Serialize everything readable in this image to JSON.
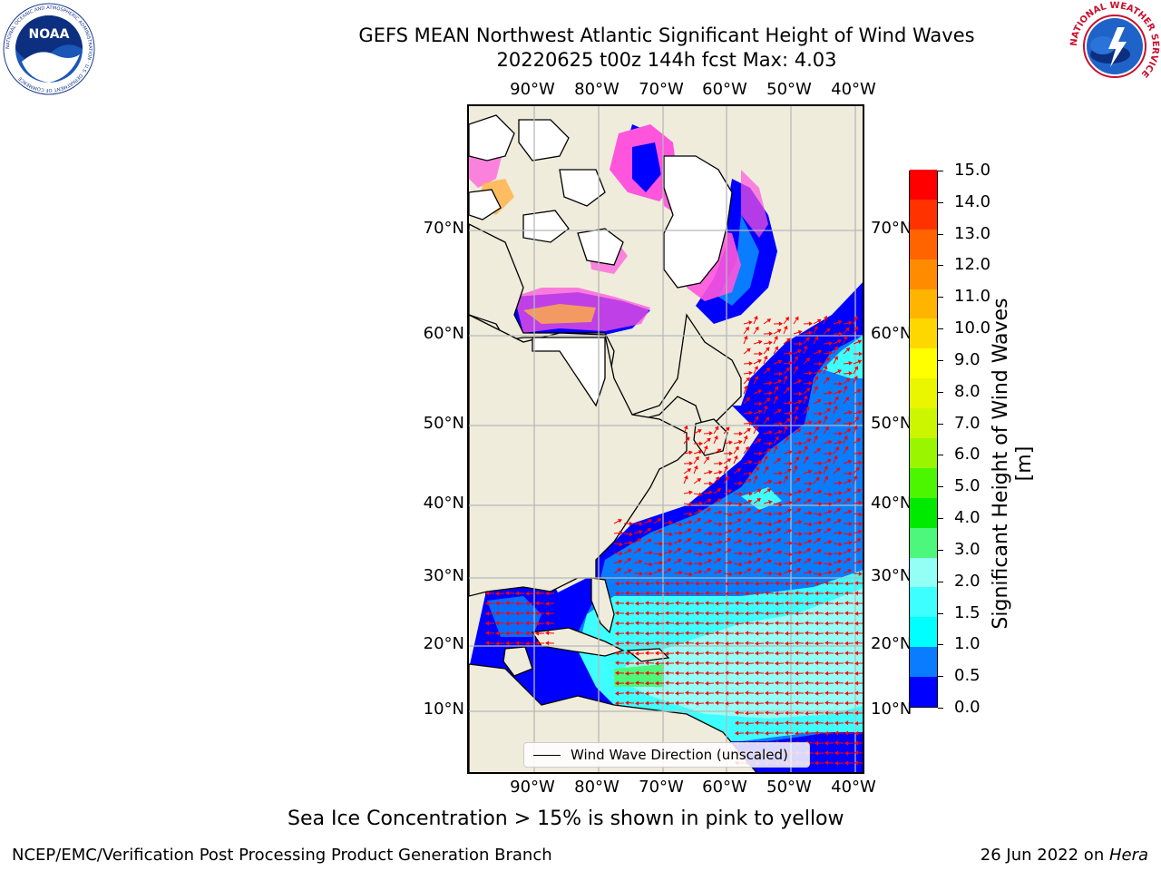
{
  "title": {
    "line1": "GEFS MEAN Northwest Atlantic Significant Height of Wind Waves",
    "line2": "20220625 t00z 144h fcst   Max: 4.03"
  },
  "axes": {
    "lon_ticks": [
      "90°W",
      "80°W",
      "70°W",
      "60°W",
      "50°W",
      "40°W"
    ],
    "lat_ticks": [
      "70°N",
      "60°N",
      "50°N",
      "40°N",
      "30°N",
      "20°N",
      "10°N"
    ]
  },
  "colorbar": {
    "label": "Significant Height of Wind Waves [m]",
    "ticks": [
      "15.0",
      "14.0",
      "13.0",
      "12.0",
      "11.0",
      "10.0",
      "9.0",
      "8.0",
      "7.0",
      "6.0",
      "5.0",
      "4.0",
      "3.0",
      "2.0",
      "1.5",
      "1.0",
      "0.5",
      "0.0"
    ],
    "colors": [
      "#0000ff",
      "#0a7cff",
      "#00ffff",
      "#3dffff",
      "#94fff4",
      "#4cf77c",
      "#00ea00",
      "#4cf500",
      "#99f500",
      "#ccf500",
      "#eaf500",
      "#ffff00",
      "#ffd700",
      "#ffb400",
      "#ff8c00",
      "#ff6400",
      "#ff3200",
      "#ff0000"
    ]
  },
  "legend": {
    "label": "Wind Wave Direction (unscaled)"
  },
  "subtitle": "Sea Ice Concentration > 15% is shown in pink to yellow",
  "footer": {
    "left": "NCEP/EMC/Verification Post Processing Product Generation Branch",
    "right_date": "26 Jun 2022 on ",
    "right_host": "Hera"
  },
  "logos": {
    "noaa_text": "NOAA",
    "noaa_ring": "NATIONAL OCEANIC AND ATMOSPHERIC ADMINISTRATION · U.S. DEPARTMENT OF COMMERCE",
    "nws_ring": "NATIONAL WEATHER SERVICE"
  },
  "map_colors": {
    "land": "#efecdc",
    "ice_pink": "#ff55dd",
    "ice_orange": "#ffb040",
    "arrow": "#ff0000"
  }
}
